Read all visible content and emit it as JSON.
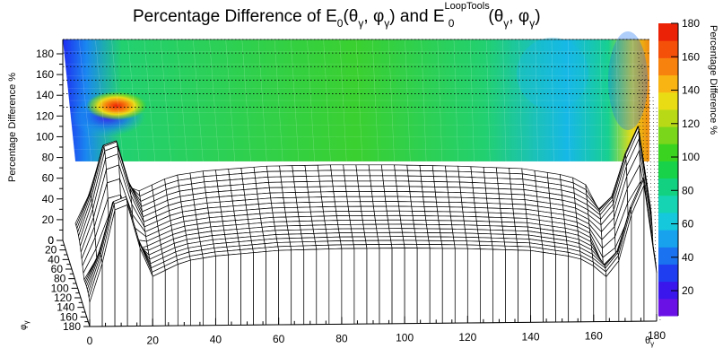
{
  "chart_data": {
    "type": "surface",
    "title": {
      "prefix": "Percentage Difference of E",
      "sub1": "0",
      "mid1": "(θ",
      "g1": "γ",
      "mid2": ", φ",
      "g2": "γ",
      "mid3": ") and E",
      "sup": "LoopTools",
      "sub2": "0",
      "mid4": "(θ",
      "g3": "γ",
      "mid5": ", φ",
      "g4": "γ",
      "end": ")"
    },
    "xlabel": "θ",
    "xlabel_sub": "γ",
    "ylabel": "φ",
    "ylabel_sub": "γ",
    "zlabel": "Percentage Difference %",
    "colorbar_label": "Percentage Difference %",
    "x_ticks": [
      "0",
      "20",
      "40",
      "60",
      "80",
      "100",
      "120",
      "140",
      "160",
      "180"
    ],
    "y_ticks": [
      "0",
      "20",
      "40",
      "60",
      "80",
      "100",
      "120",
      "140",
      "160",
      "180"
    ],
    "z_ticks": [
      "0",
      "20",
      "40",
      "60",
      "80",
      "100",
      "120",
      "140",
      "160",
      "180"
    ],
    "colorbar_ticks": [
      "20",
      "40",
      "60",
      "80",
      "100",
      "120",
      "140",
      "160",
      "180"
    ],
    "xlim": [
      0,
      180
    ],
    "ylim": [
      0,
      180
    ],
    "zlim": [
      0,
      180
    ],
    "colorbar_range": [
      5,
      180
    ],
    "colors": {
      "palette": [
        "#6a12e6",
        "#3b16ec",
        "#1e3ef0",
        "#1a72f0",
        "#18a2ee",
        "#16c8dc",
        "#14d4b4",
        "#12d282",
        "#18d24a",
        "#3ad420",
        "#7ad61a",
        "#b8da16",
        "#eadc14",
        "#f8b412",
        "#f8820e",
        "#f4500a",
        "#ec2206"
      ]
    },
    "surface_profile": {
      "phi": [
        0,
        20,
        40,
        60,
        80,
        100,
        120,
        140,
        160,
        180
      ],
      "theta": [
        0,
        5,
        10,
        15,
        20,
        30,
        40,
        60,
        80,
        100,
        120,
        140,
        155,
        160,
        165,
        170,
        175,
        180
      ],
      "z_by_theta": [
        20,
        60,
        120,
        70,
        40,
        52,
        56,
        60,
        61,
        61,
        60,
        58,
        52,
        45,
        35,
        60,
        130,
        40
      ]
    }
  }
}
